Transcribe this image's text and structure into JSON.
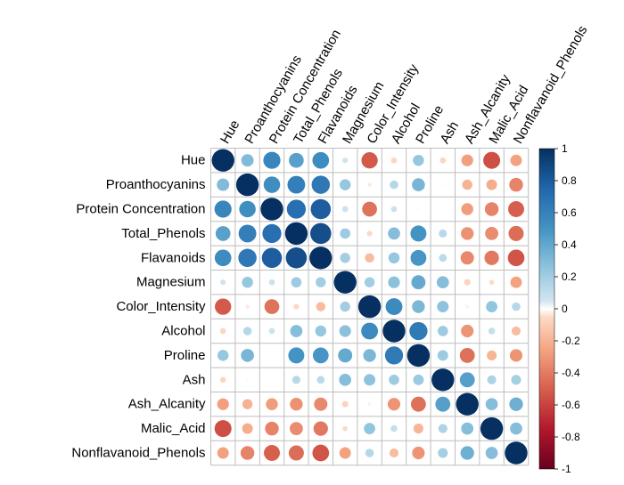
{
  "chart_data": {
    "type": "heatmap",
    "subtype": "correlation-circles",
    "variables": [
      "Hue",
      "Proanthocyanins",
      "Protein Concentration",
      "Total_Phenols",
      "Flavanoids",
      "Magnesium",
      "Color_Intensity",
      "Alcohol",
      "Proline",
      "Ash",
      "Ash_Alcanity",
      "Malic_Acid",
      "Nonflavanoid_Phenols"
    ],
    "matrix": [
      [
        1.0,
        0.3,
        0.57,
        0.43,
        0.54,
        0.06,
        -0.52,
        -0.07,
        0.24,
        -0.07,
        -0.27,
        -0.56,
        -0.26
      ],
      [
        0.3,
        1.0,
        0.53,
        0.61,
        0.65,
        0.24,
        -0.03,
        0.14,
        0.33,
        0.01,
        -0.2,
        -0.22,
        -0.37
      ],
      [
        0.57,
        0.53,
        1.0,
        0.7,
        0.79,
        0.07,
        -0.43,
        0.07,
        0.01,
        0.0,
        -0.28,
        -0.37,
        -0.5
      ],
      [
        0.43,
        0.61,
        0.7,
        1.0,
        0.86,
        0.21,
        -0.06,
        0.29,
        0.5,
        0.13,
        -0.32,
        -0.34,
        -0.45
      ],
      [
        0.54,
        0.65,
        0.79,
        0.86,
        1.0,
        0.2,
        -0.17,
        0.24,
        0.49,
        0.12,
        -0.35,
        -0.41,
        -0.54
      ],
      [
        0.06,
        0.24,
        0.07,
        0.21,
        0.2,
        1.0,
        0.2,
        0.27,
        0.39,
        0.29,
        -0.08,
        -0.05,
        -0.26
      ],
      [
        -0.52,
        -0.03,
        -0.43,
        -0.06,
        -0.17,
        0.2,
        1.0,
        0.55,
        0.32,
        0.26,
        0.02,
        0.25,
        0.14
      ],
      [
        -0.07,
        0.14,
        0.07,
        0.29,
        0.24,
        0.27,
        0.55,
        1.0,
        0.64,
        0.21,
        -0.31,
        0.09,
        -0.16
      ],
      [
        0.24,
        0.33,
        0.01,
        0.5,
        0.49,
        0.39,
        0.32,
        0.64,
        1.0,
        0.22,
        -0.44,
        -0.19,
        -0.31
      ],
      [
        -0.07,
        0.01,
        0.0,
        0.13,
        0.12,
        0.29,
        0.26,
        0.21,
        0.22,
        1.0,
        0.44,
        0.16,
        0.19
      ],
      [
        -0.27,
        -0.2,
        -0.28,
        -0.32,
        -0.35,
        -0.08,
        0.02,
        -0.31,
        -0.44,
        0.44,
        1.0,
        0.29,
        0.36
      ],
      [
        -0.56,
        -0.22,
        -0.37,
        -0.34,
        -0.41,
        -0.05,
        0.25,
        0.09,
        -0.19,
        0.16,
        0.29,
        1.0,
        0.29
      ],
      [
        -0.26,
        -0.37,
        -0.5,
        -0.45,
        -0.54,
        -0.26,
        0.14,
        -0.16,
        -0.31,
        0.19,
        0.36,
        0.29,
        1.0
      ]
    ],
    "color_scale": {
      "min": -1,
      "max": 1,
      "stops": [
        {
          "value": -1.0,
          "color": "#67001F"
        },
        {
          "value": -0.75,
          "color": "#B2182B"
        },
        {
          "value": -0.5,
          "color": "#D6604D"
        },
        {
          "value": -0.25,
          "color": "#F4A582"
        },
        {
          "value": -0.05,
          "color": "#FDDBC7"
        },
        {
          "value": 0.0,
          "color": "#FFFFFF"
        },
        {
          "value": 0.05,
          "color": "#D1E5F0"
        },
        {
          "value": 0.25,
          "color": "#92C5DE"
        },
        {
          "value": 0.5,
          "color": "#4393C3"
        },
        {
          "value": 0.75,
          "color": "#2166AC"
        },
        {
          "value": 1.0,
          "color": "#053061"
        }
      ]
    },
    "legend": {
      "position": "right",
      "ticks": [
        1,
        0.8,
        0.6,
        0.4,
        0.2,
        0,
        -0.2,
        -0.4,
        -0.6,
        -0.8,
        -1
      ],
      "tick_labels": [
        "1",
        "0.8",
        "0.6",
        "0.4",
        "0.2",
        "0",
        "-0.2",
        "-0.4",
        "-0.6",
        "-0.8",
        "-1"
      ]
    },
    "grid": true,
    "grid_color": "#BEBEBE"
  }
}
